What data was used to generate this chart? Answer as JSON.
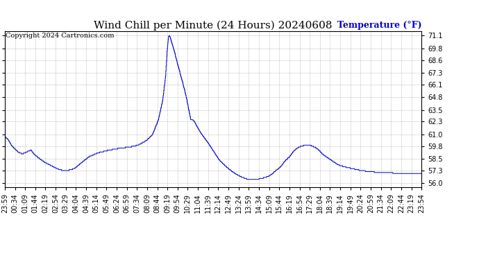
{
  "title": "Wind Chill per Minute (24 Hours) 20240608",
  "ylabel": "Temperature (°F)",
  "copyright": "Copyright 2024 Cartronics.com",
  "line_color": "#0000cc",
  "ylabel_color": "#0000cc",
  "background_color": "#ffffff",
  "grid_color": "#888888",
  "ylim": [
    55.6,
    71.55
  ],
  "yticks": [
    56.0,
    57.3,
    58.5,
    59.8,
    61.0,
    62.3,
    63.5,
    64.8,
    66.1,
    67.3,
    68.6,
    69.8,
    71.1
  ],
  "xtick_labels": [
    "23:59",
    "00:34",
    "01:09",
    "01:44",
    "02:19",
    "02:54",
    "03:29",
    "04:04",
    "04:39",
    "05:14",
    "05:49",
    "06:24",
    "06:59",
    "07:34",
    "08:09",
    "08:44",
    "09:19",
    "09:54",
    "10:29",
    "11:04",
    "11:39",
    "12:14",
    "12:49",
    "13:24",
    "13:59",
    "14:34",
    "15:09",
    "15:44",
    "16:19",
    "16:54",
    "17:29",
    "18:04",
    "18:39",
    "19:14",
    "19:49",
    "20:24",
    "20:59",
    "21:34",
    "22:09",
    "22:44",
    "23:19",
    "23:54"
  ],
  "title_fontsize": 11,
  "tick_fontsize": 7,
  "copyright_fontsize": 7
}
